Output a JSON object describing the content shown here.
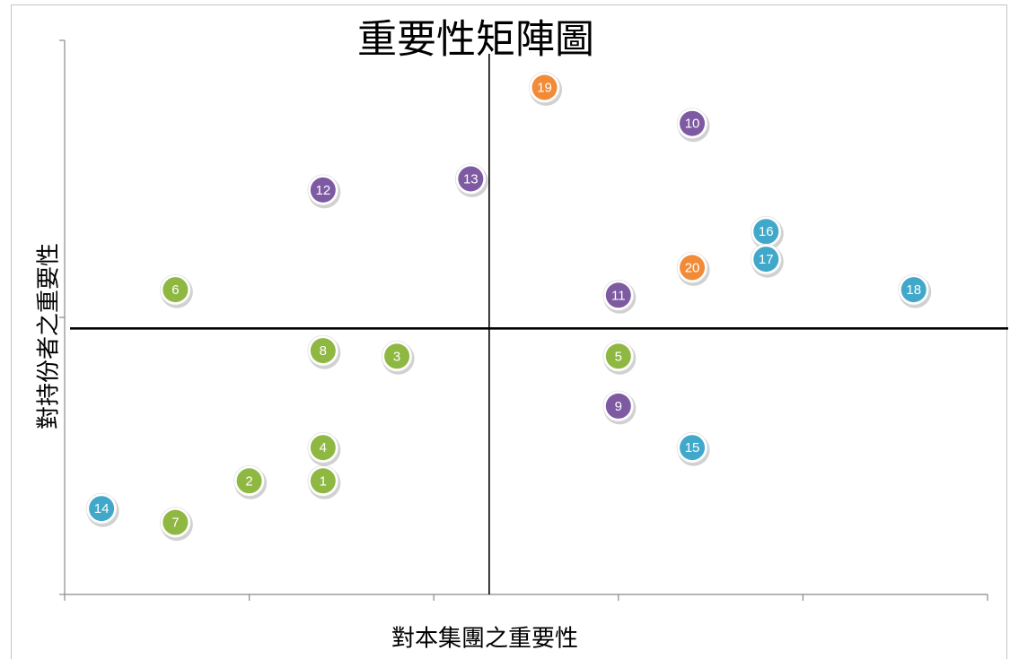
{
  "chart_data": {
    "type": "scatter",
    "title": "重要性矩陣圖",
    "xlabel": "對本集團之重要性",
    "ylabel": "對持份者之重要性",
    "xlim": [
      0,
      5
    ],
    "ylim": [
      0,
      2
    ],
    "xticks": [
      0,
      1,
      2,
      3,
      4,
      5
    ],
    "yticks": [
      0,
      1,
      2
    ],
    "show_tick_labels": false,
    "show_grid": false,
    "show_legend": false,
    "quadrant_lines": {
      "x": 2.3,
      "y": 0.96
    },
    "colors": {
      "green": "#8fb843",
      "purple": "#7d5aa2",
      "teal": "#42a8ca",
      "orange": "#f28b38"
    },
    "points": [
      {
        "label": "1",
        "x": 1.4,
        "y": 0.41,
        "color": "green"
      },
      {
        "label": "2",
        "x": 1.0,
        "y": 0.41,
        "color": "green"
      },
      {
        "label": "3",
        "x": 1.8,
        "y": 0.86,
        "color": "green"
      },
      {
        "label": "4",
        "x": 1.4,
        "y": 0.53,
        "color": "green"
      },
      {
        "label": "5",
        "x": 3.0,
        "y": 0.86,
        "color": "green"
      },
      {
        "label": "6",
        "x": 0.6,
        "y": 1.1,
        "color": "green"
      },
      {
        "label": "7",
        "x": 0.6,
        "y": 0.26,
        "color": "green"
      },
      {
        "label": "8",
        "x": 1.4,
        "y": 0.88,
        "color": "green"
      },
      {
        "label": "9",
        "x": 3.0,
        "y": 0.68,
        "color": "purple"
      },
      {
        "label": "10",
        "x": 3.4,
        "y": 1.7,
        "color": "purple"
      },
      {
        "label": "11",
        "x": 3.0,
        "y": 1.08,
        "color": "purple"
      },
      {
        "label": "12",
        "x": 1.4,
        "y": 1.46,
        "color": "purple"
      },
      {
        "label": "13",
        "x": 2.2,
        "y": 1.5,
        "color": "purple"
      },
      {
        "label": "14",
        "x": 0.2,
        "y": 0.31,
        "color": "teal"
      },
      {
        "label": "15",
        "x": 3.4,
        "y": 0.53,
        "color": "teal"
      },
      {
        "label": "16",
        "x": 3.8,
        "y": 1.31,
        "color": "teal"
      },
      {
        "label": "17",
        "x": 3.8,
        "y": 1.21,
        "color": "teal"
      },
      {
        "label": "18",
        "x": 4.6,
        "y": 1.1,
        "color": "teal"
      },
      {
        "label": "19",
        "x": 2.6,
        "y": 1.83,
        "color": "orange"
      },
      {
        "label": "20",
        "x": 3.4,
        "y": 1.18,
        "color": "orange"
      }
    ]
  }
}
